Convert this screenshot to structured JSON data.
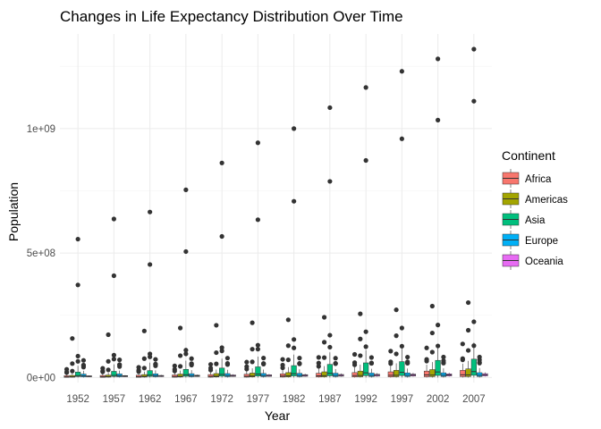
{
  "chart_data": {
    "type": "boxplot",
    "title": "Changes in Life Expectancy Distribution Over Time",
    "xlabel": "Year",
    "ylabel": "Population",
    "categories": [
      "1952",
      "1957",
      "1962",
      "1967",
      "1972",
      "1977",
      "1982",
      "1987",
      "1992",
      "1997",
      "2002",
      "2007"
    ],
    "ylim": [
      -20000000,
      1380000000
    ],
    "yticks": [
      0,
      500000000,
      1000000000
    ],
    "ytick_labels": [
      "0e+00",
      "5e+08",
      "1e+09"
    ],
    "grid": true,
    "legend": {
      "title": "Continent",
      "position": "right",
      "entries": [
        "Africa",
        "Americas",
        "Asia",
        "Europe",
        "Oceania"
      ]
    },
    "colors": {
      "Africa": "#F8766D",
      "Americas": "#A3A500",
      "Asia": "#00BF7D",
      "Europe": "#00B0F6",
      "Oceania": "#E76BF3"
    },
    "series": [
      {
        "name": "Africa",
        "boxes": [
          {
            "lo": 0,
            "q1": 1000000,
            "med": 2700000,
            "q3": 7500000,
            "hi": 16000000,
            "out": [
              20000000,
              22000000,
              33000000
            ]
          },
          {
            "lo": 0,
            "q1": 1000000,
            "med": 3000000,
            "q3": 8500000,
            "hi": 18000000,
            "out": [
              23000000,
              26000000,
              37000000
            ]
          },
          {
            "lo": 0,
            "q1": 1200000,
            "med": 3500000,
            "q3": 9500000,
            "hi": 20000000,
            "out": [
              24000000,
              29000000,
              41000000
            ]
          },
          {
            "lo": 0,
            "q1": 1300000,
            "med": 4000000,
            "q3": 10500000,
            "hi": 22000000,
            "out": [
              26000000,
              33000000,
              47000000
            ]
          },
          {
            "lo": 0,
            "q1": 1500000,
            "med": 4500000,
            "q3": 12000000,
            "hi": 25000000,
            "out": [
              30000000,
              38000000,
              53000000
            ]
          },
          {
            "lo": 0,
            "q1": 1700000,
            "med": 5000000,
            "q3": 13500000,
            "hi": 28000000,
            "out": [
              34000000,
              44000000,
              62000000
            ]
          },
          {
            "lo": 0,
            "q1": 2000000,
            "med": 6000000,
            "q3": 15000000,
            "hi": 32000000,
            "out": [
              39000000,
              50000000,
              73000000
            ]
          },
          {
            "lo": 0,
            "q1": 2300000,
            "med": 7000000,
            "q3": 17500000,
            "hi": 36000000,
            "out": [
              45000000,
              58000000,
              81000000
            ]
          },
          {
            "lo": 0,
            "q1": 2500000,
            "med": 8000000,
            "q3": 20000000,
            "hi": 41000000,
            "out": [
              51000000,
              60000000,
              93000000
            ]
          },
          {
            "lo": 0,
            "q1": 2800000,
            "med": 9000000,
            "q3": 23000000,
            "hi": 47000000,
            "out": [
              56000000,
              63000000,
              106000000
            ]
          },
          {
            "lo": 0,
            "q1": 3200000,
            "med": 10500000,
            "q3": 26000000,
            "hi": 52000000,
            "out": [
              66000000,
              73000000,
              119000000
            ]
          },
          {
            "lo": 0,
            "q1": 3500000,
            "med": 11000000,
            "q3": 29000000,
            "hi": 56000000,
            "out": [
              71000000,
              76000000,
              135000000
            ]
          }
        ]
      },
      {
        "name": "Americas",
        "boxes": [
          {
            "lo": 0,
            "q1": 1500000,
            "med": 3000000,
            "q3": 8500000,
            "hi": 17000000,
            "out": [
              26000000,
              56000000,
              157000000
            ]
          },
          {
            "lo": 0,
            "q1": 1700000,
            "med": 3600000,
            "q3": 10000000,
            "hi": 20000000,
            "out": [
              31000000,
              65000000,
              172000000
            ]
          },
          {
            "lo": 0,
            "q1": 1900000,
            "med": 4200000,
            "q3": 12000000,
            "hi": 24000000,
            "out": [
              38000000,
              76000000,
              187000000
            ]
          },
          {
            "lo": 0,
            "q1": 2100000,
            "med": 4700000,
            "q3": 14000000,
            "hi": 28000000,
            "out": [
              45000000,
              88000000,
              199000000
            ]
          },
          {
            "lo": 0,
            "q1": 2300000,
            "med": 5300000,
            "q3": 16000000,
            "hi": 32000000,
            "out": [
              55000000,
              100000000,
              210000000
            ]
          },
          {
            "lo": 0,
            "q1": 2500000,
            "med": 6000000,
            "q3": 18000000,
            "hi": 37000000,
            "out": [
              63000000,
              114000000,
              220000000
            ]
          },
          {
            "lo": 0,
            "q1": 2700000,
            "med": 6700000,
            "q3": 20000000,
            "hi": 42000000,
            "out": [
              71000000,
              128000000,
              232000000
            ]
          },
          {
            "lo": 0,
            "q1": 2900000,
            "med": 7500000,
            "q3": 23000000,
            "hi": 46000000,
            "out": [
              80000000,
              142000000,
              242000000
            ]
          },
          {
            "lo": 0,
            "q1": 3100000,
            "med": 8200000,
            "q3": 26000000,
            "hi": 52000000,
            "out": [
              88000000,
              155000000,
              256000000
            ]
          },
          {
            "lo": 0,
            "q1": 3300000,
            "med": 9000000,
            "q3": 29000000,
            "hi": 57000000,
            "out": [
              95000000,
              168000000,
              272000000
            ]
          },
          {
            "lo": 0,
            "q1": 3500000,
            "med": 9800000,
            "q3": 32000000,
            "hi": 62000000,
            "out": [
              102000000,
              179000000,
              287000000
            ]
          },
          {
            "lo": 0,
            "q1": 3700000,
            "med": 10500000,
            "q3": 35000000,
            "hi": 67000000,
            "out": [
              109000000,
              190000000,
              301000000
            ]
          }
        ]
      },
      {
        "name": "Asia",
        "boxes": [
          {
            "lo": 0,
            "q1": 3800000,
            "med": 7500000,
            "q3": 22000000,
            "hi": 47000000,
            "out": [
              65000000,
              86000000,
              372000000,
              556000000
            ]
          },
          {
            "lo": 0,
            "q1": 4200000,
            "med": 8500000,
            "q3": 25000000,
            "hi": 53000000,
            "out": [
              74000000,
              90000000,
              409000000,
              637000000
            ]
          },
          {
            "lo": 0,
            "q1": 4600000,
            "med": 9500000,
            "q3": 28000000,
            "hi": 60000000,
            "out": [
              83000000,
              95000000,
              454000000,
              665000000
            ]
          },
          {
            "lo": 0,
            "q1": 5000000,
            "med": 11000000,
            "q3": 33000000,
            "hi": 68000000,
            "out": [
              95000000,
              110000000,
              506000000,
              754000000
            ]
          },
          {
            "lo": 0,
            "q1": 5500000,
            "med": 12500000,
            "q3": 38000000,
            "hi": 76000000,
            "out": [
              107000000,
              120000000,
              567000000,
              862000000
            ]
          },
          {
            "lo": 0,
            "q1": 6000000,
            "med": 14000000,
            "q3": 43000000,
            "hi": 84000000,
            "out": [
              114000000,
              130000000,
              634000000,
              943000000
            ]
          },
          {
            "lo": 0,
            "q1": 6500000,
            "med": 15500000,
            "q3": 48000000,
            "hi": 92000000,
            "out": [
              119000000,
              153000000,
              708000000,
              1000000000
            ]
          },
          {
            "lo": 0,
            "q1": 7000000,
            "med": 17000000,
            "q3": 53000000,
            "hi": 101000000,
            "out": [
              122000000,
              170000000,
              788000000,
              1084000000
            ]
          },
          {
            "lo": 0,
            "q1": 7500000,
            "med": 19000000,
            "q3": 59000000,
            "hi": 110000000,
            "out": [
              124000000,
              184000000,
              872000000,
              1165000000
            ]
          },
          {
            "lo": 0,
            "q1": 8000000,
            "med": 21000000,
            "q3": 64000000,
            "hi": 120000000,
            "out": [
              126000000,
              199000000,
              959000000,
              1230000000
            ]
          },
          {
            "lo": 0,
            "q1": 8500000,
            "med": 22500000,
            "q3": 69000000,
            "hi": 130000000,
            "out": [
              127000000,
              211000000,
              1034000000,
              1280000000
            ]
          },
          {
            "lo": 0,
            "q1": 9000000,
            "med": 24000000,
            "q3": 74000000,
            "hi": 140000000,
            "out": [
              128000000,
              224000000,
              1110000000,
              1319000000
            ]
          }
        ]
      },
      {
        "name": "Europe",
        "boxes": [
          {
            "lo": 0,
            "q1": 3000000,
            "med": 7000000,
            "q3": 14000000,
            "hi": 27000000,
            "out": [
              42000000,
              49000000,
              50000000,
              69000000
            ]
          },
          {
            "lo": 0,
            "q1": 3100000,
            "med": 7200000,
            "q3": 14500000,
            "hi": 28000000,
            "out": [
              44000000,
              51000000,
              52000000,
              71000000
            ]
          },
          {
            "lo": 0,
            "q1": 3200000,
            "med": 7500000,
            "q3": 15000000,
            "hi": 29000000,
            "out": [
              47000000,
              53000000,
              54000000,
              73000000
            ]
          },
          {
            "lo": 0,
            "q1": 3300000,
            "med": 7700000,
            "q3": 15500000,
            "hi": 30000000,
            "out": [
              50000000,
              54000000,
              56000000,
              76000000
            ]
          },
          {
            "lo": 0,
            "q1": 3400000,
            "med": 8000000,
            "q3": 16000000,
            "hi": 31000000,
            "out": [
              52000000,
              55000000,
              57000000,
              78000000
            ]
          },
          {
            "lo": 0,
            "q1": 3500000,
            "med": 8200000,
            "q3": 16500000,
            "hi": 32000000,
            "out": [
              54000000,
              56000000,
              56500000,
              78200000
            ]
          },
          {
            "lo": 0,
            "q1": 3600000,
            "med": 8500000,
            "q3": 17000000,
            "hi": 33000000,
            "out": [
              55000000,
              56300000,
              56600000,
              78300000
            ]
          },
          {
            "lo": 0,
            "q1": 3700000,
            "med": 8600000,
            "q3": 17500000,
            "hi": 34000000,
            "out": [
              55600000,
              56600000,
              57000000,
              77700000
            ]
          },
          {
            "lo": 0,
            "q1": 3800000,
            "med": 8700000,
            "q3": 18000000,
            "hi": 35000000,
            "out": [
              56900000,
              57800000,
              58500000,
              80600000
            ]
          },
          {
            "lo": 0,
            "q1": 3900000,
            "med": 8800000,
            "q3": 18500000,
            "hi": 36000000,
            "out": [
              57500000,
              58500000,
              63000000,
              82000000
            ]
          },
          {
            "lo": 0,
            "q1": 4000000,
            "med": 8900000,
            "q3": 19000000,
            "hi": 37000000,
            "out": [
              57900000,
              59600000,
              67000000,
              82400000
            ]
          },
          {
            "lo": 0,
            "q1": 4100000,
            "med": 9000000,
            "q3": 19500000,
            "hi": 38000000,
            "out": [
              58100000,
              60800000,
              71000000,
              82400000
            ]
          }
        ]
      },
      {
        "name": "Oceania",
        "boxes": [
          {
            "lo": 1900000,
            "q1": 3000000,
            "med": 5000000,
            "q3": 7000000,
            "hi": 8700000,
            "out": []
          },
          {
            "lo": 2200000,
            "q1": 3400000,
            "med": 5500000,
            "q3": 7800000,
            "hi": 9700000,
            "out": []
          },
          {
            "lo": 2500000,
            "q1": 3800000,
            "med": 6200000,
            "q3": 8600000,
            "hi": 10800000,
            "out": []
          },
          {
            "lo": 2700000,
            "q1": 4200000,
            "med": 6900000,
            "q3": 9500000,
            "hi": 11900000,
            "out": []
          },
          {
            "lo": 2900000,
            "q1": 4500000,
            "med": 7500000,
            "q3": 10300000,
            "hi": 13200000,
            "out": []
          },
          {
            "lo": 3100000,
            "q1": 4800000,
            "med": 7900000,
            "q3": 11000000,
            "hi": 14100000,
            "out": []
          },
          {
            "lo": 3200000,
            "q1": 5000000,
            "med": 8400000,
            "q3": 11700000,
            "hi": 15200000,
            "out": []
          },
          {
            "lo": 3300000,
            "q1": 5300000,
            "med": 8800000,
            "q3": 12400000,
            "hi": 16300000,
            "out": []
          },
          {
            "lo": 3400000,
            "q1": 5600000,
            "med": 9400000,
            "q3": 13300000,
            "hi": 17500000,
            "out": []
          },
          {
            "lo": 3700000,
            "q1": 5900000,
            "med": 9900000,
            "q3": 14000000,
            "hi": 18600000,
            "out": []
          },
          {
            "lo": 3900000,
            "q1": 6200000,
            "med": 10500000,
            "q3": 14800000,
            "hi": 19500000,
            "out": []
          },
          {
            "lo": 4100000,
            "q1": 6500000,
            "med": 11000000,
            "q3": 15600000,
            "hi": 20400000,
            "out": []
          }
        ]
      }
    ]
  }
}
